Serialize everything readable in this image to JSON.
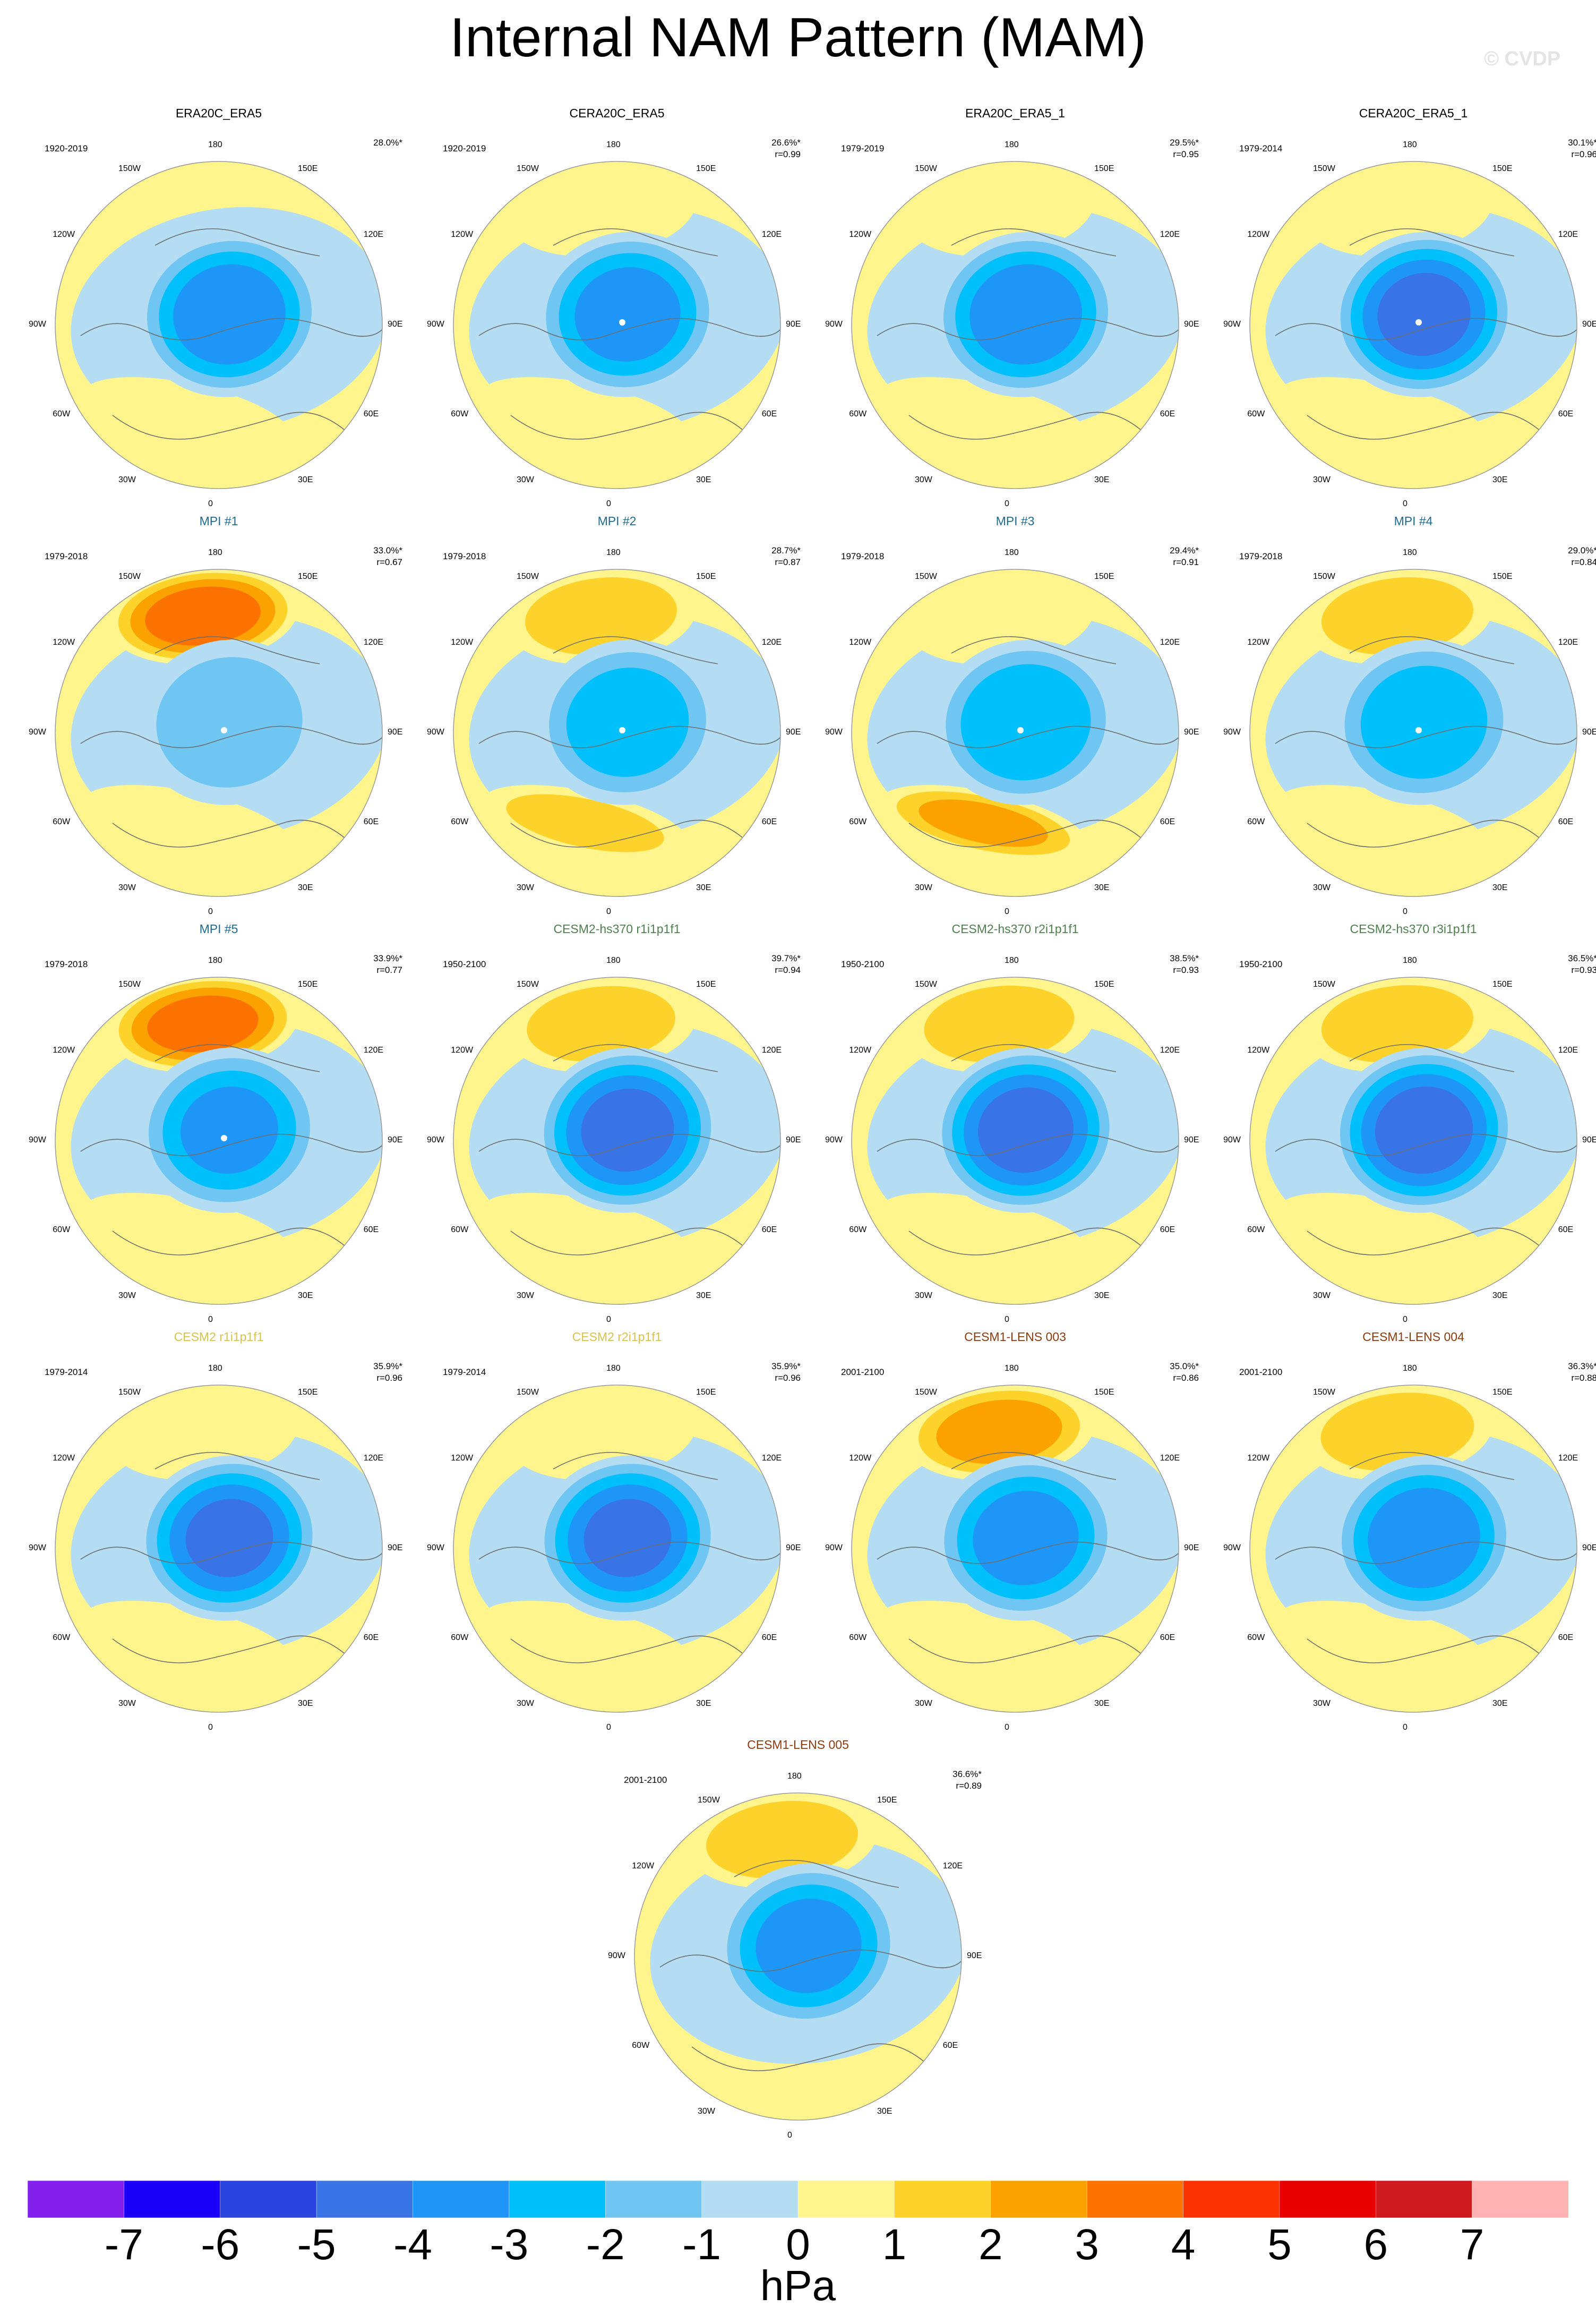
{
  "title": "Internal NAM Pattern (MAM)",
  "watermark": "© CVDP",
  "lon_labels": {
    "top": "180",
    "upper_left": "150W",
    "upper_right": "150E",
    "left_upper": "120W",
    "right_upper": "120E",
    "left": "90W",
    "right": "90E",
    "left_lower": "60W",
    "right_lower": "60E",
    "lower_left": "30W",
    "lower_right": "30E",
    "bottom": "0"
  },
  "colors": {
    "obs_title": "#000000",
    "mpi_title": "#1f6b8f",
    "cesm2_hs370_title": "#4f7f4f",
    "cesm2_title": "#d8c24a",
    "cesm1_title": "#8b3a0e"
  },
  "chart_data": {
    "type": "heatmap",
    "projection": "north polar stereographic",
    "unit": "hPa",
    "colorbar": {
      "ticks": [
        "-7",
        "-6",
        "-5",
        "-4",
        "-3",
        "-2",
        "-1",
        "0",
        "1",
        "2",
        "3",
        "4",
        "5",
        "6",
        "7"
      ],
      "colors": [
        "#8420ee",
        "#1a00f8",
        "#2a44e0",
        "#3874e6",
        "#1e96f8",
        "#00c0fc",
        "#70c6f2",
        "#b4dcf2",
        "#fff58c",
        "#fdd22a",
        "#fba200",
        "#fb7200",
        "#fc3200",
        "#e80000",
        "#ce1a1e",
        "#feb2b2"
      ]
    },
    "panels": [
      {
        "title": "ERA20C_ERA5",
        "period": "1920-2019",
        "pct": "28.0%*",
        "r": "",
        "group": "obs",
        "polar_min": -4.6,
        "pacific_high": 0.5,
        "atlantic_high": 1.6,
        "dot": false
      },
      {
        "title": "CERA20C_ERA5",
        "period": "1920-2019",
        "pct": "26.6%*",
        "r": "r=0.99",
        "group": "obs",
        "polar_min": -4.3,
        "pacific_high": 1.5,
        "atlantic_high": 1.6,
        "dot": true
      },
      {
        "title": "ERA20C_ERA5_1",
        "period": "1979-2019",
        "pct": "29.5%*",
        "r": "r=0.95",
        "group": "obs",
        "polar_min": -4.6,
        "pacific_high": 1.3,
        "atlantic_high": 1.7,
        "dot": false
      },
      {
        "title": "CERA20C_ERA5_1",
        "period": "1979-2014",
        "pct": "30.1%*",
        "r": "r=0.96",
        "group": "obs",
        "polar_min": -5.2,
        "pacific_high": 1.4,
        "atlantic_high": 1.6,
        "dot": true
      },
      {
        "title": "MPI #1",
        "period": "1979-2018",
        "pct": "33.0%*",
        "r": "r=0.67",
        "group": "mpi",
        "polar_min": -2.5,
        "pacific_high": 4.6,
        "atlantic_high": 1.4,
        "dot": true
      },
      {
        "title": "MPI #2",
        "period": "1979-2018",
        "pct": "28.7%*",
        "r": "r=0.87",
        "group": "mpi",
        "polar_min": -3.4,
        "pacific_high": 2.6,
        "atlantic_high": 2.2,
        "dot": true
      },
      {
        "title": "MPI #3",
        "period": "1979-2018",
        "pct": "29.4%*",
        "r": "r=0.91",
        "group": "mpi",
        "polar_min": -3.8,
        "pacific_high": 1.6,
        "atlantic_high": 3.1,
        "dot": true
      },
      {
        "title": "MPI #4",
        "period": "1979-2018",
        "pct": "29.0%*",
        "r": "r=0.84",
        "group": "mpi",
        "polar_min": -3.6,
        "pacific_high": 2.6,
        "atlantic_high": 1.7,
        "dot": true
      },
      {
        "title": "MPI #5",
        "period": "1979-2018",
        "pct": "33.9%*",
        "r": "r=0.77",
        "group": "mpi",
        "polar_min": -4.0,
        "pacific_high": 4.4,
        "atlantic_high": 1.6,
        "dot": true
      },
      {
        "title": "CESM2-hs370 r1i1p1f1",
        "period": "1950-2100",
        "pct": "39.7%*",
        "r": "r=0.94",
        "group": "cesm2_hs370",
        "polar_min": -5.2,
        "pacific_high": 2.4,
        "atlantic_high": 1.8,
        "dot": false
      },
      {
        "title": "CESM2-hs370 r2i1p1f1",
        "period": "1950-2100",
        "pct": "38.5%*",
        "r": "r=0.93",
        "group": "cesm2_hs370",
        "polar_min": -5.3,
        "pacific_high": 2.5,
        "atlantic_high": 1.8,
        "dot": false
      },
      {
        "title": "CESM2-hs370 r3i1p1f1",
        "period": "1950-2100",
        "pct": "36.5%*",
        "r": "r=0.93",
        "group": "cesm2_hs370",
        "polar_min": -5.4,
        "pacific_high": 2.6,
        "atlantic_high": 1.7,
        "dot": false
      },
      {
        "title": "CESM2 r1i1p1f1",
        "period": "1979-2014",
        "pct": "35.9%*",
        "r": "r=0.96",
        "group": "cesm2",
        "polar_min": -5.0,
        "pacific_high": 1.7,
        "atlantic_high": 1.8,
        "dot": false
      },
      {
        "title": "CESM2 r2i1p1f1",
        "period": "1979-2014",
        "pct": "35.9%*",
        "r": "r=0.96",
        "group": "cesm2",
        "polar_min": -5.0,
        "pacific_high": 1.7,
        "atlantic_high": 1.8,
        "dot": false
      },
      {
        "title": "CESM1-LENS 003",
        "period": "2001-2100",
        "pct": "35.0%*",
        "r": "r=0.86",
        "group": "cesm1",
        "polar_min": -4.3,
        "pacific_high": 3.4,
        "atlantic_high": 1.2,
        "dot": false
      },
      {
        "title": "CESM1-LENS 004",
        "period": "2001-2100",
        "pct": "36.3%*",
        "r": "r=0.88",
        "group": "cesm1",
        "polar_min": -4.6,
        "pacific_high": 2.7,
        "atlantic_high": 1.2,
        "dot": false
      },
      {
        "title": "CESM1-LENS 005",
        "period": "2001-2100",
        "pct": "36.6%*",
        "r": "r=0.89",
        "group": "cesm1",
        "polar_min": -4.3,
        "pacific_high": 2.6,
        "atlantic_high": 0.8,
        "dot": false
      }
    ]
  }
}
